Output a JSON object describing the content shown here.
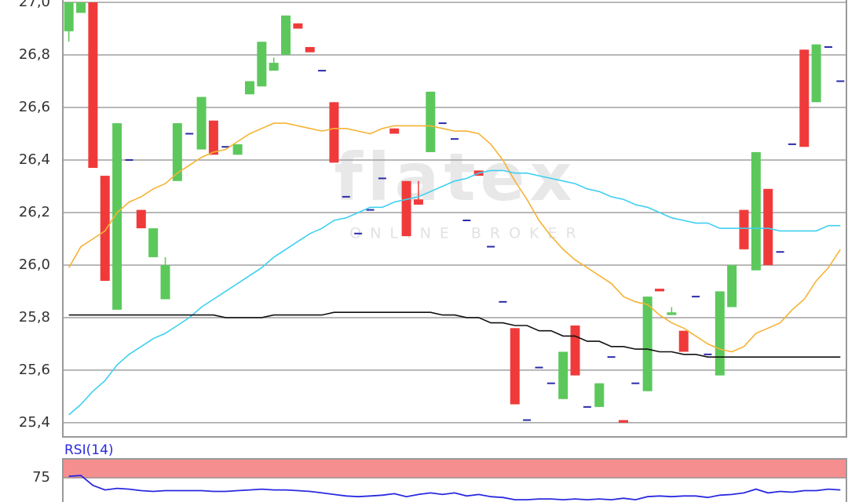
{
  "chart_data": {
    "type": "candlestick",
    "watermark_title": "flatex",
    "watermark_subtitle": "ONLINE BROKER",
    "ylim": [
      25.346,
      27.009
    ],
    "yticks": [
      {
        "value": 25.4,
        "label": "25,4"
      },
      {
        "value": 25.6,
        "label": "25,6"
      },
      {
        "value": 25.8,
        "label": "25,8"
      },
      {
        "value": 26.0,
        "label": "26,0"
      },
      {
        "value": 26.2,
        "label": "26,2"
      },
      {
        "value": 26.4,
        "label": "26,4"
      },
      {
        "value": 26.6,
        "label": "26,6"
      },
      {
        "value": 26.8,
        "label": "26,8"
      },
      {
        "value": 27.0,
        "label": "27,0"
      }
    ],
    "grid": true,
    "up_color": "#5cc85c",
    "down_color": "#f03a3a",
    "flat_color": "#2a2aa8",
    "open": [
      26.89,
      26.96,
      27.0,
      26.34,
      25.83,
      26.4,
      26.21,
      26.03,
      25.87,
      26.32,
      26.5,
      26.44,
      26.55,
      26.45,
      26.42,
      26.65,
      26.68,
      26.74,
      26.8,
      26.92,
      26.83,
      26.74,
      26.62,
      26.26,
      26.12,
      26.21,
      26.33,
      26.52,
      26.32,
      26.25,
      26.43,
      26.54,
      26.48,
      26.17,
      26.36,
      26.07,
      25.86,
      25.76,
      25.41,
      25.61,
      25.55,
      25.49,
      25.77,
      25.46,
      25.46,
      25.65,
      25.41,
      25.55,
      25.52,
      25.91,
      25.81,
      25.75,
      25.88,
      25.66,
      25.58,
      25.84,
      26.21,
      25.98,
      26.29,
      26.05,
      26.46,
      26.82,
      26.62,
      26.83,
      26.7
    ],
    "high": [
      27.0,
      27.0,
      27.0,
      26.34,
      26.54,
      26.4,
      26.21,
      26.14,
      26.03,
      26.54,
      26.5,
      26.64,
      26.55,
      26.45,
      26.46,
      26.7,
      26.85,
      26.79,
      26.95,
      26.92,
      26.83,
      26.74,
      26.62,
      26.26,
      26.12,
      26.21,
      26.33,
      26.52,
      26.32,
      26.32,
      26.66,
      26.54,
      26.48,
      26.17,
      26.36,
      26.07,
      25.86,
      25.76,
      25.41,
      25.61,
      25.55,
      25.67,
      25.77,
      25.46,
      25.55,
      25.65,
      25.41,
      25.55,
      25.88,
      25.91,
      25.84,
      25.75,
      25.88,
      25.66,
      25.9,
      26.0,
      26.21,
      26.43,
      26.29,
      26.05,
      26.46,
      26.82,
      26.84,
      26.83,
      26.7
    ],
    "low": [
      26.85,
      26.96,
      26.37,
      25.94,
      25.83,
      26.4,
      26.14,
      26.03,
      25.87,
      26.32,
      26.5,
      26.44,
      26.42,
      26.45,
      26.42,
      26.65,
      26.68,
      26.74,
      26.8,
      26.9,
      26.81,
      26.74,
      26.39,
      26.26,
      26.12,
      26.21,
      26.33,
      26.5,
      26.11,
      26.23,
      26.43,
      26.54,
      26.48,
      26.17,
      26.34,
      26.07,
      25.86,
      25.47,
      25.41,
      25.61,
      25.55,
      25.49,
      25.58,
      25.46,
      25.46,
      25.65,
      25.4,
      25.55,
      25.52,
      25.9,
      25.81,
      25.67,
      25.88,
      25.66,
      25.58,
      25.84,
      26.06,
      25.98,
      26.0,
      26.05,
      26.46,
      26.45,
      26.62,
      26.83,
      26.7
    ],
    "close": [
      27.0,
      27.0,
      26.37,
      25.94,
      26.54,
      26.4,
      26.14,
      26.14,
      26.0,
      26.54,
      26.5,
      26.64,
      26.42,
      26.45,
      26.46,
      26.7,
      26.85,
      26.77,
      26.95,
      26.9,
      26.81,
      26.74,
      26.39,
      26.26,
      26.12,
      26.21,
      26.33,
      26.5,
      26.11,
      26.23,
      26.66,
      26.54,
      26.48,
      26.17,
      26.34,
      26.07,
      25.86,
      25.47,
      25.41,
      25.61,
      25.55,
      25.67,
      25.58,
      25.46,
      25.55,
      25.65,
      25.4,
      25.55,
      25.88,
      25.9,
      25.82,
      25.67,
      25.88,
      25.66,
      25.9,
      26.0,
      26.06,
      26.43,
      26.0,
      26.05,
      26.46,
      26.45,
      26.84,
      26.83,
      26.7
    ],
    "lines": [
      {
        "color": "#f5b335",
        "values": [
          25.99,
          26.07,
          26.1,
          26.13,
          26.2,
          26.24,
          26.26,
          26.29,
          26.31,
          26.35,
          26.38,
          26.41,
          26.43,
          26.44,
          26.47,
          26.5,
          26.52,
          26.54,
          26.54,
          26.53,
          26.52,
          26.51,
          26.52,
          26.52,
          26.51,
          26.5,
          26.52,
          26.53,
          26.53,
          26.53,
          26.53,
          26.52,
          26.51,
          26.51,
          26.5,
          26.46,
          26.4,
          26.32,
          26.25,
          26.17,
          26.11,
          26.06,
          26.02,
          25.99,
          25.96,
          25.93,
          25.88,
          25.86,
          25.85,
          25.81,
          25.78,
          25.76,
          25.73,
          25.7,
          25.68,
          25.67,
          25.69,
          25.74,
          25.76,
          25.78,
          25.83,
          25.87,
          25.94,
          25.99,
          26.06
        ]
      },
      {
        "color": "#3fd0f0",
        "values": [
          25.43,
          25.47,
          25.52,
          25.56,
          25.62,
          25.66,
          25.69,
          25.72,
          25.74,
          25.77,
          25.8,
          25.84,
          25.87,
          25.9,
          25.93,
          25.96,
          25.99,
          26.03,
          26.06,
          26.09,
          26.12,
          26.14,
          26.17,
          26.18,
          26.2,
          26.22,
          26.22,
          26.24,
          26.25,
          26.26,
          26.28,
          26.3,
          26.32,
          26.33,
          26.35,
          26.36,
          26.36,
          26.35,
          26.35,
          26.34,
          26.33,
          26.32,
          26.31,
          26.29,
          26.28,
          26.26,
          26.25,
          26.23,
          26.22,
          26.2,
          26.18,
          26.17,
          26.16,
          26.16,
          26.14,
          26.14,
          26.14,
          26.14,
          26.14,
          26.13,
          26.13,
          26.13,
          26.13,
          26.15,
          26.15
        ]
      },
      {
        "color": "#111111",
        "values": [
          25.81,
          25.81,
          25.81,
          25.81,
          25.81,
          25.81,
          25.81,
          25.81,
          25.81,
          25.81,
          25.81,
          25.81,
          25.81,
          25.8,
          25.8,
          25.8,
          25.8,
          25.81,
          25.81,
          25.81,
          25.81,
          25.81,
          25.82,
          25.82,
          25.82,
          25.82,
          25.82,
          25.82,
          25.82,
          25.82,
          25.82,
          25.81,
          25.81,
          25.8,
          25.8,
          25.78,
          25.78,
          25.77,
          25.77,
          25.75,
          25.75,
          25.73,
          25.73,
          25.71,
          25.71,
          25.69,
          25.69,
          25.68,
          25.68,
          25.67,
          25.67,
          25.66,
          25.66,
          25.65,
          25.65,
          25.65,
          25.65,
          25.65,
          25.65,
          25.65,
          25.65,
          25.65,
          25.65,
          25.65,
          25.65
        ]
      }
    ],
    "rsi": {
      "title": "RSI(14)",
      "color": "#2a2ae0",
      "band_color": "#f26a6a",
      "band": [
        75,
        100
      ],
      "ylim": [
        43,
        100
      ],
      "yticks": [
        75
      ],
      "values": [
        77,
        78,
        65,
        59,
        61,
        60,
        58,
        57,
        58,
        58,
        58,
        58,
        57,
        57,
        58,
        59,
        60,
        59,
        59,
        58,
        57,
        55,
        53,
        51,
        50,
        51,
        52,
        54,
        50,
        53,
        55,
        53,
        55,
        51,
        53,
        50,
        49,
        46,
        46,
        47,
        47,
        46,
        47,
        46,
        47,
        46,
        48,
        46,
        50,
        51,
        50,
        51,
        51,
        49,
        52,
        53,
        55,
        60,
        55,
        57,
        56,
        58,
        58,
        60,
        59
      ]
    }
  }
}
